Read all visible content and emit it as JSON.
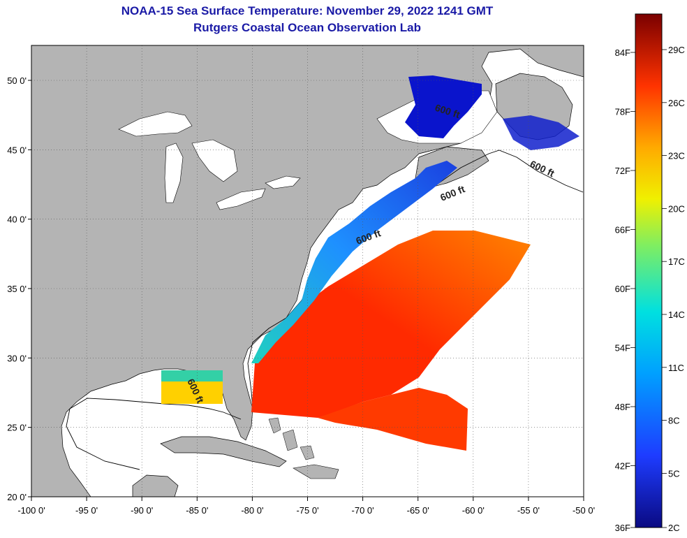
{
  "title": "NOAA-15 Sea Surface Temperature:  November 29, 2022 1241 GMT",
  "subtitle": "Rutgers Coastal Ocean Observation Lab",
  "map": {
    "x_ticks": [
      "-100 0'",
      "-95 0'",
      "-90 0'",
      "-85 0'",
      "-80 0'",
      "-75 0'",
      "-70 0'",
      "-65 0'",
      "-60 0'",
      "-55 0'",
      "-50 0'"
    ],
    "y_ticks": [
      "50 0'",
      "45 0'",
      "40 0'",
      "35 0'",
      "30 0'",
      "25 0'",
      "20 0'"
    ],
    "contour_labels": [
      "600 ft",
      "600 ft",
      "600 ft",
      "600 ft",
      "600 ft"
    ],
    "colors": {
      "land": "#b4b4b4",
      "ocean_nodata": "#ffffff",
      "coast": "#000000"
    }
  },
  "colorbar": {
    "fahrenheit_labels": [
      "84F",
      "78F",
      "72F",
      "66F",
      "60F",
      "54F",
      "48F",
      "42F",
      "36F"
    ],
    "celsius_labels": [
      "29C",
      "26C",
      "23C",
      "20C",
      "17C",
      "14C",
      "11C",
      "8C",
      "5C",
      "2C"
    ],
    "colors": [
      "#0a0a82",
      "#1e3cff",
      "#00c8ff",
      "#66ee66",
      "#f0f000",
      "#ff9900",
      "#ff2200",
      "#8b0000"
    ]
  }
}
